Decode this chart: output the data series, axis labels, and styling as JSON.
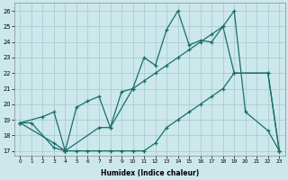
{
  "xlabel": "Humidex (Indice chaleur)",
  "bg_color": "#cce8eb",
  "grid_color": "#aacdd1",
  "line_color": "#1a6e6a",
  "curve1_x": [
    0,
    1,
    3,
    4,
    7,
    8,
    10,
    11,
    12,
    13,
    14,
    15,
    16,
    17,
    18,
    19,
    20,
    22,
    23
  ],
  "curve1_y": [
    18.8,
    18.8,
    17.2,
    17.0,
    18.5,
    18.5,
    21.0,
    23.0,
    22.5,
    24.8,
    26.0,
    23.8,
    24.1,
    24.0,
    25.0,
    26.0,
    19.5,
    18.3,
    17.0
  ],
  "curve2_x": [
    0,
    2,
    3,
    4,
    5,
    6,
    7,
    8,
    9,
    10,
    11,
    12,
    13,
    14,
    15,
    16,
    17,
    18,
    19,
    22,
    23
  ],
  "curve2_y": [
    18.8,
    19.2,
    19.5,
    17.0,
    19.8,
    20.2,
    20.5,
    18.5,
    20.8,
    21.0,
    21.5,
    22.0,
    22.5,
    23.0,
    23.5,
    24.0,
    24.5,
    25.0,
    22.0,
    22.0,
    17.0
  ],
  "curve3_x": [
    0,
    3,
    4,
    5,
    6,
    7,
    8,
    9,
    10,
    11,
    12,
    13,
    14,
    15,
    16,
    17,
    18,
    19,
    22,
    23
  ],
  "curve3_y": [
    18.8,
    17.5,
    17.0,
    17.0,
    17.0,
    17.0,
    17.0,
    17.0,
    17.0,
    17.0,
    17.5,
    18.5,
    19.0,
    19.5,
    20.0,
    20.5,
    21.0,
    22.0,
    22.0,
    17.0
  ],
  "ylim_min": 16.7,
  "ylim_max": 26.5,
  "xlim_min": -0.5,
  "xlim_max": 23.5,
  "yticks": [
    17,
    18,
    19,
    20,
    21,
    22,
    23,
    24,
    25,
    26
  ],
  "xticks": [
    0,
    1,
    2,
    3,
    4,
    5,
    6,
    7,
    8,
    9,
    10,
    11,
    12,
    13,
    14,
    15,
    16,
    17,
    18,
    19,
    20,
    21,
    22,
    23
  ]
}
